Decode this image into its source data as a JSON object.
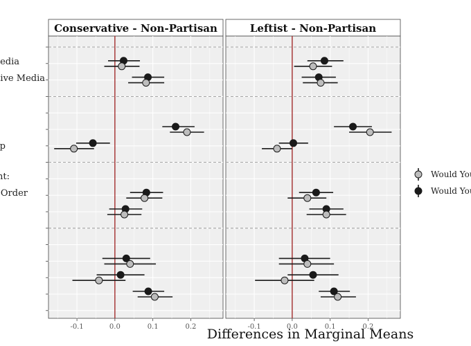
{
  "chart_data": {
    "type": "scatter",
    "xlabel": "Differences in Marginal Means",
    "ylabel": "",
    "xlim": [
      -0.175,
      0.285
    ],
    "x_ticks": [
      -0.1,
      0.0,
      0.1,
      0.2
    ],
    "x_tick_labels": [
      "-0.1",
      "0.0",
      "0.1",
      "0.2"
    ],
    "reference_line_x": 0,
    "grid": true,
    "legend_position": "right",
    "legend": [
      "Would You",
      "Would You"
    ],
    "series_colors": [
      "#bdbdbd",
      "#1a1a1a"
    ],
    "y_labels": [
      "Media",
      "ative Media",
      "p",
      "ent:",
      "Order"
    ],
    "panels": [
      {
        "title": "Conservative - Non-Partisan",
        "points": [
          {
            "row": 1,
            "est": 0.023,
            "lo": -0.018,
            "hi": 0.066,
            "series": 1
          },
          {
            "row": 1,
            "est": 0.018,
            "lo": -0.028,
            "hi": 0.065,
            "series": 0
          },
          {
            "row": 2,
            "est": 0.087,
            "lo": 0.045,
            "hi": 0.13,
            "series": 1
          },
          {
            "row": 2,
            "est": 0.082,
            "lo": 0.035,
            "hi": 0.13,
            "series": 0
          },
          {
            "row": 5,
            "est": 0.16,
            "lo": 0.125,
            "hi": 0.21,
            "series": 1
          },
          {
            "row": 5,
            "est": 0.19,
            "lo": 0.145,
            "hi": 0.235,
            "series": 0
          },
          {
            "row": 6,
            "est": -0.058,
            "lo": -0.102,
            "hi": -0.013,
            "series": 1
          },
          {
            "row": 6,
            "est": -0.108,
            "lo": -0.16,
            "hi": -0.055,
            "series": 0
          },
          {
            "row": 9,
            "est": 0.083,
            "lo": 0.04,
            "hi": 0.127,
            "series": 1
          },
          {
            "row": 9,
            "est": 0.078,
            "lo": 0.03,
            "hi": 0.125,
            "series": 0
          },
          {
            "row": 10,
            "est": 0.028,
            "lo": -0.015,
            "hi": 0.072,
            "series": 1
          },
          {
            "row": 10,
            "est": 0.025,
            "lo": -0.02,
            "hi": 0.07,
            "series": 0
          },
          {
            "row": 13,
            "est": 0.03,
            "lo": -0.033,
            "hi": 0.093,
            "series": 1
          },
          {
            "row": 13,
            "est": 0.04,
            "lo": -0.028,
            "hi": 0.108,
            "series": 0
          },
          {
            "row": 14,
            "est": 0.015,
            "lo": -0.048,
            "hi": 0.078,
            "series": 1
          },
          {
            "row": 14,
            "est": -0.042,
            "lo": -0.112,
            "hi": 0.028,
            "series": 0
          },
          {
            "row": 15,
            "est": 0.088,
            "lo": 0.047,
            "hi": 0.13,
            "series": 1
          },
          {
            "row": 15,
            "est": 0.105,
            "lo": 0.06,
            "hi": 0.152,
            "series": 0
          }
        ]
      },
      {
        "title": "Leftist - Non-Partisan",
        "points": [
          {
            "row": 1,
            "est": 0.085,
            "lo": 0.04,
            "hi": 0.135,
            "series": 1
          },
          {
            "row": 1,
            "est": 0.055,
            "lo": 0.005,
            "hi": 0.105,
            "series": 0
          },
          {
            "row": 2,
            "est": 0.07,
            "lo": 0.025,
            "hi": 0.115,
            "series": 1
          },
          {
            "row": 2,
            "est": 0.075,
            "lo": 0.028,
            "hi": 0.12,
            "series": 0
          },
          {
            "row": 5,
            "est": 0.16,
            "lo": 0.11,
            "hi": 0.21,
            "series": 1
          },
          {
            "row": 5,
            "est": 0.205,
            "lo": 0.15,
            "hi": 0.262,
            "series": 0
          },
          {
            "row": 6,
            "est": 0.003,
            "lo": -0.035,
            "hi": 0.042,
            "series": 1
          },
          {
            "row": 6,
            "est": -0.04,
            "lo": -0.08,
            "hi": 0.0,
            "series": 0
          },
          {
            "row": 9,
            "est": 0.063,
            "lo": 0.018,
            "hi": 0.108,
            "series": 1
          },
          {
            "row": 9,
            "est": 0.04,
            "lo": -0.012,
            "hi": 0.09,
            "series": 0
          },
          {
            "row": 10,
            "est": 0.09,
            "lo": 0.045,
            "hi": 0.135,
            "series": 1
          },
          {
            "row": 10,
            "est": 0.09,
            "lo": 0.038,
            "hi": 0.142,
            "series": 0
          },
          {
            "row": 13,
            "est": 0.033,
            "lo": -0.035,
            "hi": 0.1,
            "series": 1
          },
          {
            "row": 13,
            "est": 0.04,
            "lo": -0.035,
            "hi": 0.11,
            "series": 0
          },
          {
            "row": 14,
            "est": 0.055,
            "lo": -0.012,
            "hi": 0.122,
            "series": 1
          },
          {
            "row": 14,
            "est": -0.02,
            "lo": -0.098,
            "hi": 0.058,
            "series": 0
          },
          {
            "row": 15,
            "est": 0.11,
            "lo": 0.07,
            "hi": 0.152,
            "series": 1
          },
          {
            "row": 15,
            "est": 0.12,
            "lo": 0.075,
            "hi": 0.168,
            "series": 0
          }
        ]
      }
    ]
  }
}
